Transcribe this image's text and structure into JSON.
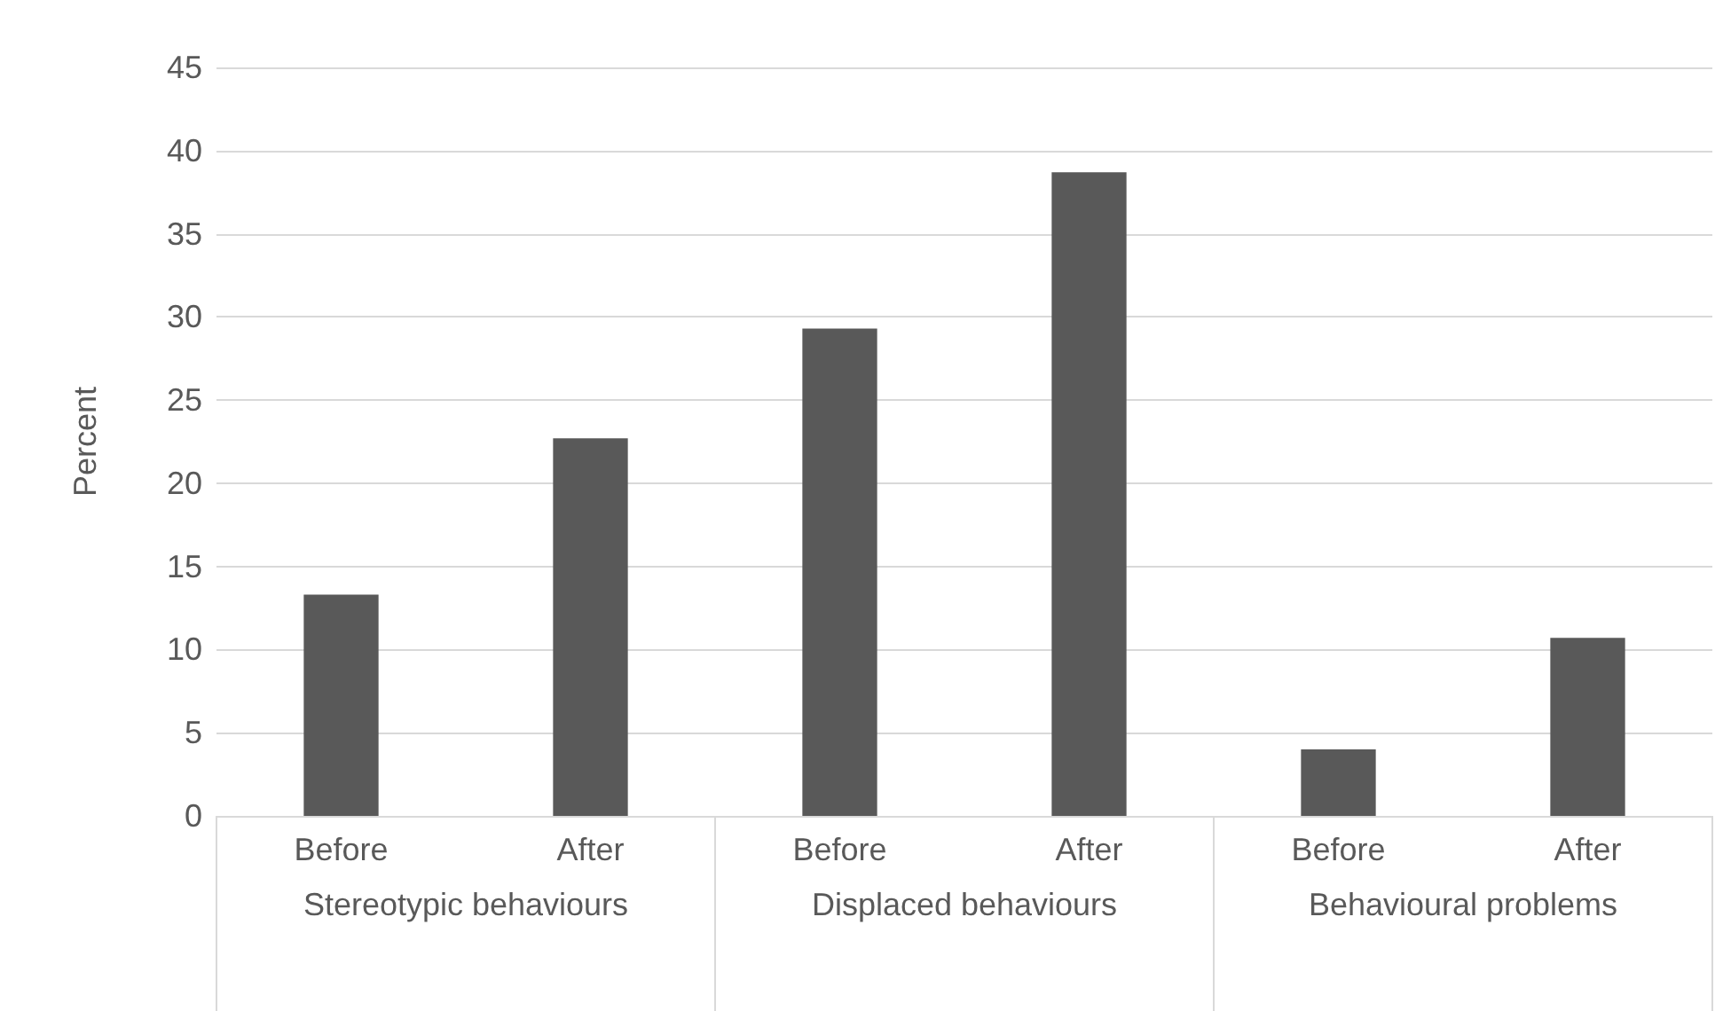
{
  "chart_data": {
    "type": "bar",
    "ylabel": "Percent",
    "categories": [
      "Before",
      "After",
      "Before",
      "After",
      "Before",
      "After"
    ],
    "values": [
      13.3,
      22.7,
      29.3,
      38.7,
      4.0,
      10.7
    ],
    "color": "#595959",
    "ylim": [
      0,
      45
    ],
    "yticks": [
      0,
      5,
      10,
      15,
      20,
      25,
      30,
      35,
      40,
      45
    ],
    "grid": "y",
    "annotations": [
      "Stereotypic behaviours",
      "Displaced behaviours",
      "Behavioural problems"
    ]
  }
}
